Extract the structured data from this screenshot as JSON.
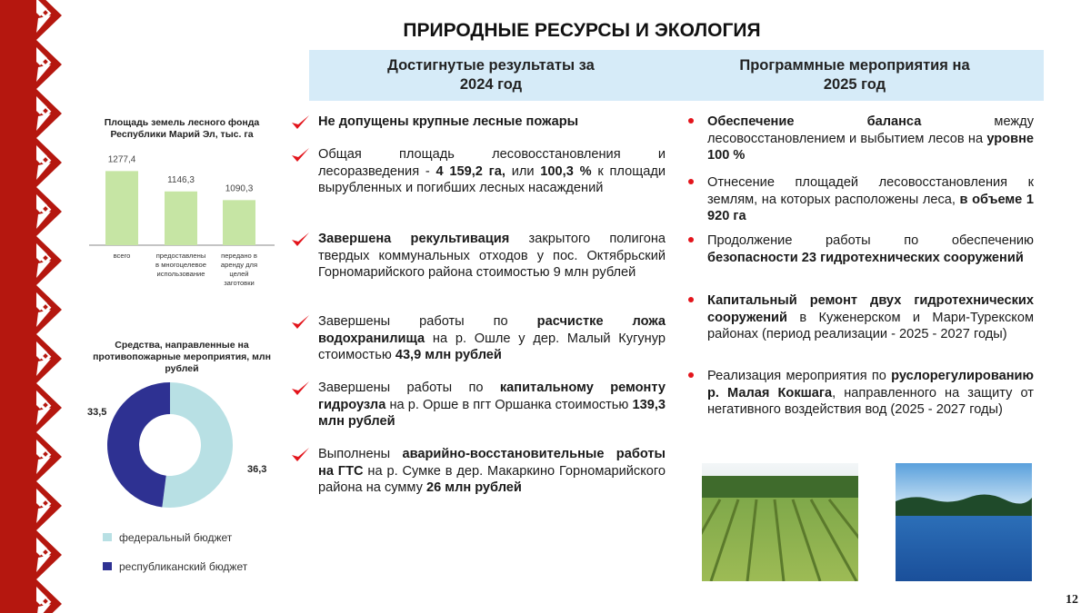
{
  "title": "ПРИРОДНЫЕ РЕСУРСЫ И ЭКОЛОГИЯ",
  "headers": {
    "left": "Достигнутые результаты за 2024 год",
    "right": "Программные мероприятия на 2025 год"
  },
  "colors": {
    "ornament": "#b5170f",
    "band": "#d6ebf8",
    "bar": "#c6e5a4",
    "federal": "#b8e0e4",
    "republican": "#2e3192",
    "check": "#e3141b"
  },
  "chart_data": [
    {
      "type": "bar",
      "title": "Площадь земель лесного фонда Республики Марий Эл, тыс. га",
      "categories": [
        "всего",
        "предоставлены в многоцелевое использование",
        "передано в аренду для целей заготовки древесины"
      ],
      "values": [
        1277.4,
        1146.3,
        1090.3
      ],
      "labels": [
        "1277,4",
        "1146,3",
        "1090,3"
      ],
      "ylim": [
        800,
        1300
      ]
    },
    {
      "type": "pie",
      "title": "Средства, направленные на противопожарные мероприятия, млн рублей",
      "slices": [
        {
          "name": "федеральный бюджет",
          "value": 36.3,
          "label": "36,3"
        },
        {
          "name": "республиканский бюджет",
          "value": 33.5,
          "label": "33,5"
        }
      ],
      "hole": true,
      "legend": "bottom"
    }
  ],
  "left": {
    "items": [
      {
        "segments": [
          {
            "t": "Не допущены крупные лесные пожары",
            "b": true
          }
        ]
      },
      {
        "segments": [
          {
            "t": "Общая площадь лесовосстановления и лесоразведения - ",
            "b": false
          },
          {
            "t": "4 159,2 га,",
            "b": true
          },
          {
            "t": " или ",
            "b": false
          },
          {
            "t": "100,3 %",
            "b": true
          },
          {
            "t": " к площади вырубленных и погибших лесных насаждений",
            "b": false
          }
        ]
      },
      {
        "segments": [
          {
            "t": "Завершена рекультивация",
            "b": true
          },
          {
            "t": " закрытого полигона твердых коммунальных отходов у пос. Октябрьский Горномарийского района стоимостью 9 млн рублей",
            "b": false
          }
        ]
      },
      {
        "segments": [
          {
            "t": "Завершены работы по ",
            "b": false
          },
          {
            "t": "расчистке ложа водохранилища",
            "b": true
          },
          {
            "t": " на р. Ошле у дер. Малый Кугунур стоимостью ",
            "b": false
          },
          {
            "t": "43,9 млн рублей",
            "b": true
          }
        ]
      },
      {
        "segments": [
          {
            "t": "Завершены работы по ",
            "b": false
          },
          {
            "t": "капитальному ремонту гидроузла",
            "b": true
          },
          {
            "t": " на р. Орше в пгт Оршанка стоимостью ",
            "b": false
          },
          {
            "t": "139,3 млн рублей",
            "b": true
          }
        ]
      },
      {
        "segments": [
          {
            "t": "Выполнены ",
            "b": false
          },
          {
            "t": "аварийно-восстановительные работы на ГТС",
            "b": true
          },
          {
            "t": " на р. Сумке в дер. Макаркино Горномарийского района на сумму ",
            "b": false
          },
          {
            "t": "26 млн рублей",
            "b": true
          }
        ]
      }
    ]
  },
  "right": {
    "items": [
      {
        "segments": [
          {
            "t": "Обеспечение баланса",
            "b": true
          },
          {
            "t": " между лесовосстановлением и выбытием лесов на ",
            "b": false
          },
          {
            "t": "уровне 100 %",
            "b": true
          }
        ]
      },
      {
        "segments": [
          {
            "t": "Отнесение площадей лесовосстановления к землям, на которых расположены леса, ",
            "b": false
          },
          {
            "t": "в объеме 1 920 га",
            "b": true
          }
        ]
      },
      {
        "segments": [
          {
            "t": "Продолжение работы по обеспечению ",
            "b": false
          },
          {
            "t": "безопасности 23 гидротехнических сооружений",
            "b": true
          }
        ]
      },
      {
        "segments": [
          {
            "t": "Капитальный ремонт двух гидротехнических сооружений",
            "b": true
          },
          {
            "t": " в Куженерском и Мари-Турекском районах (период реализации - 2025 - 2027 годы)",
            "b": false
          }
        ]
      },
      {
        "segments": [
          {
            "t": "Реализация мероприятия по ",
            "b": false
          },
          {
            "t": "руслорегулированию р. Малая Кокшага",
            "b": true
          },
          {
            "t": ", направленного на защиту от негативного воздействия вод (2025 - 2027 годы)",
            "b": false
          }
        ]
      }
    ]
  },
  "page_number": "12"
}
